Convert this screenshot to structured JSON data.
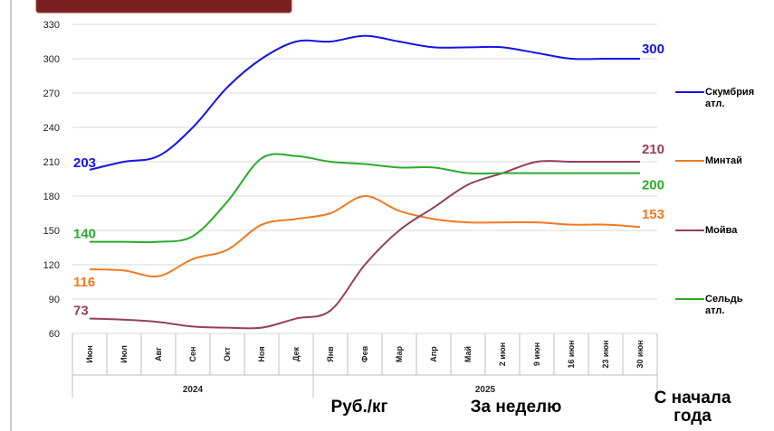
{
  "chart_data": {
    "type": "line",
    "categories": [
      "Июн",
      "Июл",
      "Авг",
      "Сен",
      "Окт",
      "Ноя",
      "Дек",
      "Янв",
      "Фев",
      "Мар",
      "Апр",
      "Май",
      "2 июн",
      "9 июн",
      "16 июн",
      "23 июн",
      "30 июн"
    ],
    "year_labels": [
      "2024",
      "2025"
    ],
    "series": [
      {
        "name": "Скумбрия атл.",
        "color": "#1414e6",
        "values": [
          203,
          210,
          215,
          240,
          275,
          300,
          315,
          315,
          320,
          315,
          310,
          310,
          310,
          305,
          300,
          300,
          300
        ]
      },
      {
        "name": "Минтай",
        "color": "#f07a22",
        "values": [
          116,
          115,
          110,
          125,
          133,
          155,
          160,
          165,
          180,
          167,
          160,
          157,
          157,
          157,
          155,
          155,
          153
        ]
      },
      {
        "name": "Мойва",
        "color": "#953f5c",
        "values": [
          73,
          72,
          70,
          66,
          65,
          65,
          73,
          80,
          120,
          150,
          170,
          190,
          200,
          210,
          210,
          210,
          210
        ]
      },
      {
        "name": "Сельдь атл.",
        "color": "#2aab2a",
        "values": [
          140,
          140,
          140,
          145,
          175,
          213,
          215,
          210,
          208,
          205,
          205,
          200,
          200,
          200,
          200,
          200,
          200
        ]
      }
    ],
    "ylim": [
      60,
      330
    ],
    "yticks": [
      60,
      90,
      120,
      150,
      180,
      210,
      240,
      270,
      300,
      330
    ],
    "grid": true,
    "annotations": [
      "Руб./кг",
      "За неделю",
      "С начала года"
    ]
  }
}
